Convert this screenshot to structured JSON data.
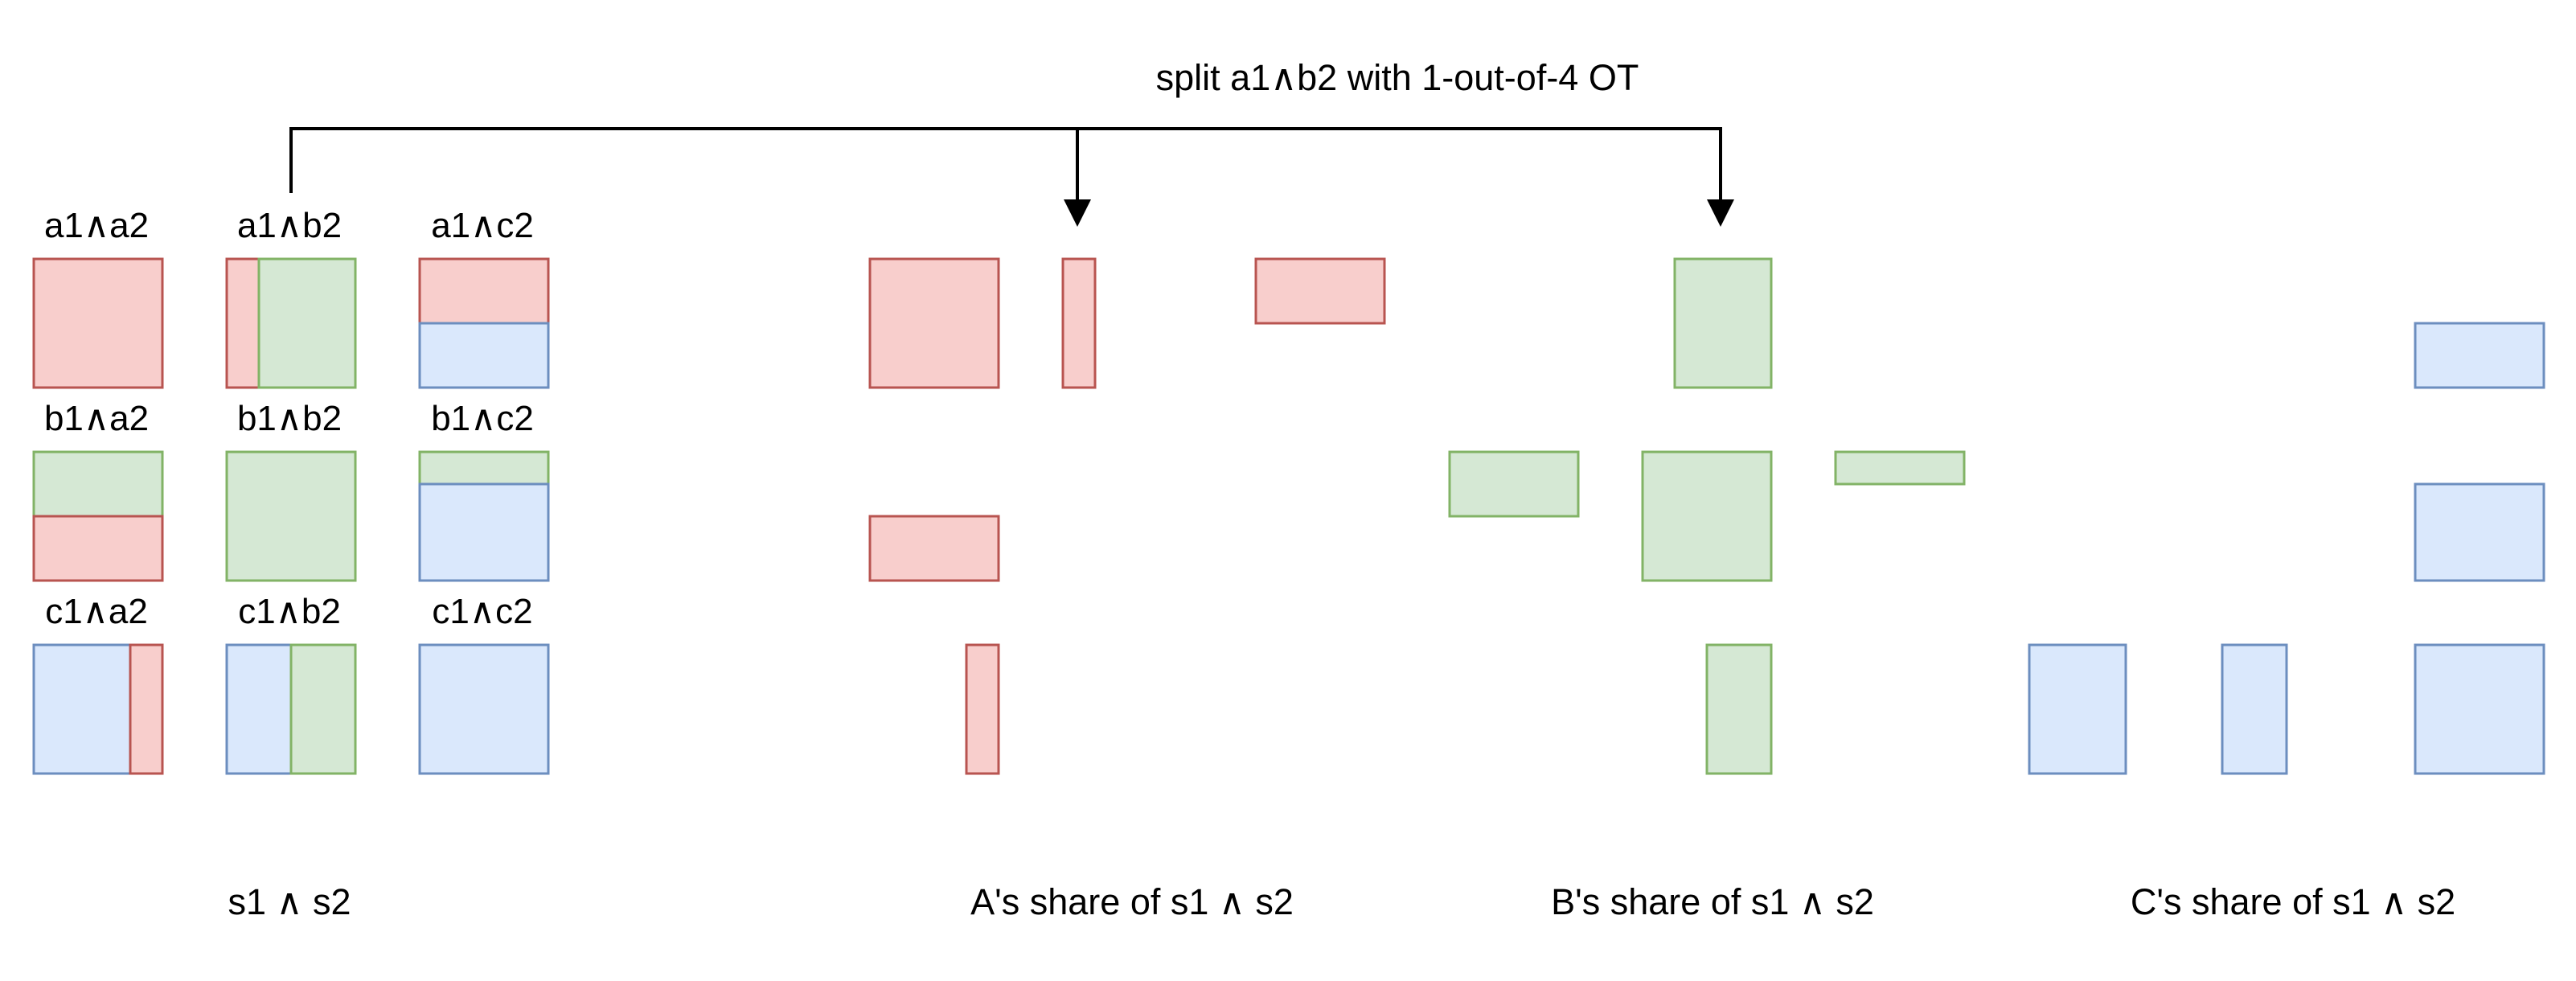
{
  "colors": {
    "red_fill": "#f8cecc",
    "red_stroke": "#b85450",
    "green_fill": "#d5e8d4",
    "green_stroke": "#82b366",
    "blue_fill": "#dae8fc",
    "blue_stroke": "#6c8ebf",
    "line": "#000000"
  },
  "top_label": "split a1∧b2 with 1-out-of-4 OT",
  "cells": {
    "a1a2": "a1∧a2",
    "a1b2": "a1∧b2",
    "a1c2": "a1∧c2",
    "b1a2": "b1∧a2",
    "b1b2": "b1∧b2",
    "b1c2": "b1∧c2",
    "c1a2": "c1∧a2",
    "c1b2": "c1∧b2",
    "c1c2": "c1∧c2"
  },
  "captions": {
    "product": "s1 ∧ s2",
    "a_share": "A's share of s1 ∧ s2",
    "b_share": "B's share of s1 ∧ s2",
    "c_share": "C's share of s1 ∧ s2"
  }
}
